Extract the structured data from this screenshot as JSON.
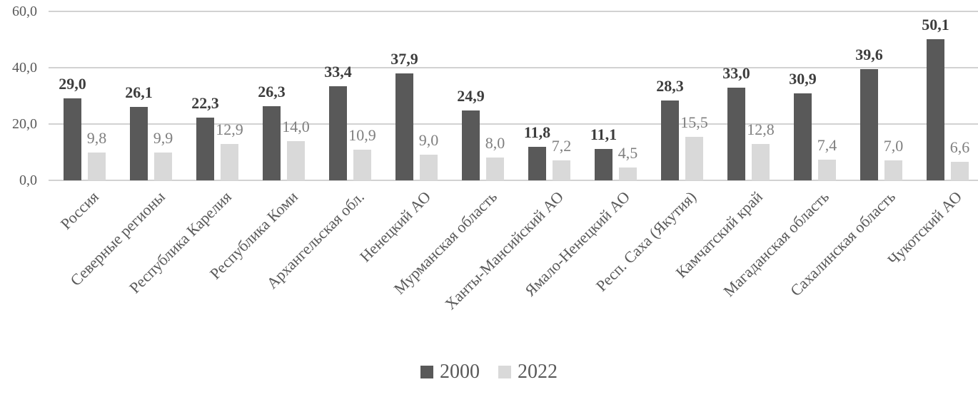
{
  "chart_data": {
    "type": "bar",
    "title": "",
    "categories": [
      "Россия",
      "Северные регионы",
      "Республика Карелия",
      "Республика Коми",
      "Архангельская обл.",
      "Ненецкий АО",
      "Мурманская область",
      "Ханты-Мансийский АО",
      "Ямало-Ненецкий АО",
      "Респ. Саха (Якутия)",
      "Камчатский край",
      "Магаданская область",
      "Сахалинская область",
      "Чукотский АО"
    ],
    "series": [
      {
        "name": "2000",
        "color": "#595959",
        "label_color": "#3d3d3d",
        "bold_labels": true,
        "values": [
          29.0,
          26.1,
          22.3,
          26.3,
          33.4,
          37.9,
          24.9,
          11.8,
          11.1,
          28.3,
          33.0,
          30.9,
          39.6,
          50.1
        ]
      },
      {
        "name": "2022",
        "color": "#d9d9d9",
        "label_color": "#7f7f7f",
        "bold_labels": false,
        "values": [
          9.8,
          9.9,
          12.9,
          14.0,
          10.9,
          9.0,
          8.0,
          7.2,
          4.5,
          15.5,
          12.8,
          7.4,
          7.0,
          6.6
        ]
      }
    ],
    "y_axis": {
      "min": 0,
      "max": 60,
      "step": 20,
      "tick_labels": [
        "0,0",
        "20,0",
        "40,0",
        "60,0"
      ]
    },
    "decimal_separator": ",",
    "grid": true,
    "legend_position": "bottom",
    "axis_label_color": "#595959",
    "gridline_color": "#d2d2d2"
  }
}
